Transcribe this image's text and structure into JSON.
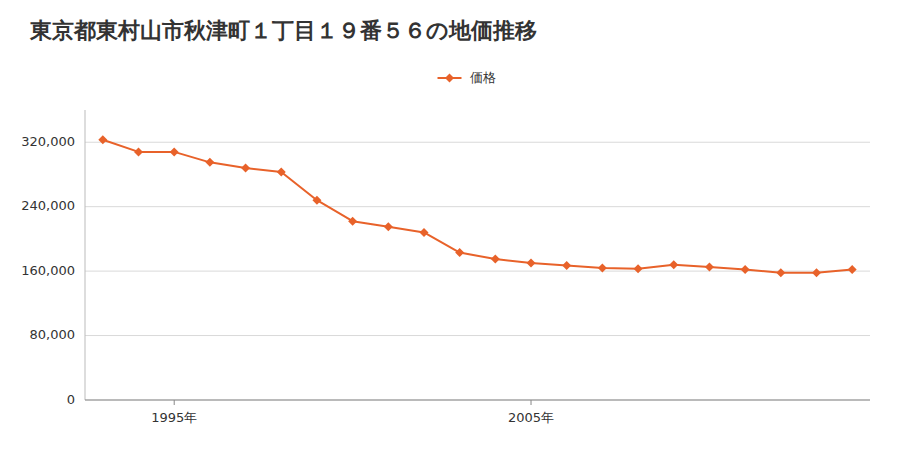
{
  "chart_data": {
    "type": "line",
    "title": "東京都東村山市秋津町１丁目１９番５６の地価推移",
    "x": [
      1993,
      1994,
      1995,
      1996,
      1997,
      1998,
      1999,
      2000,
      2001,
      2002,
      2003,
      2004,
      2005,
      2006,
      2007,
      2008,
      2009,
      2010,
      2011,
      2012,
      2013,
      2014
    ],
    "xlim": [
      1992.5,
      2014.5
    ],
    "xticks": [
      {
        "value": 1995,
        "label": "1995年"
      },
      {
        "value": 2005,
        "label": "2005年"
      }
    ],
    "series": [
      {
        "name": "価格",
        "color": "#e8622a",
        "marker": "diamond",
        "values": [
          323000,
          308000,
          308000,
          295000,
          288000,
          283000,
          248000,
          222000,
          215000,
          208000,
          183000,
          175000,
          170000,
          167000,
          164000,
          163000,
          168000,
          165000,
          162000,
          158000,
          158000,
          162000
        ]
      }
    ],
    "ylim": [
      0,
      360000
    ],
    "yticks": [
      0,
      {
        "value": 80000,
        "label": "80,000"
      },
      {
        "value": 160000,
        "label": "160,000"
      },
      {
        "value": 240000,
        "label": "240,000"
      },
      {
        "value": 320000,
        "label": "320,000"
      }
    ],
    "grid": true,
    "legend": "top"
  }
}
